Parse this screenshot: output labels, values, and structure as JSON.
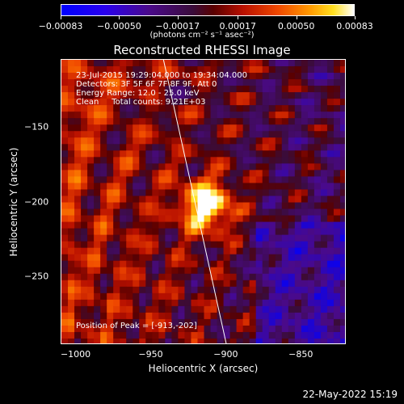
{
  "chart_data": {
    "type": "heatmap",
    "title": "Reconstructed RHESSI Image",
    "xlabel": "Heliocentric X (arcsec)",
    "ylabel": "Heliocentric Y (arcsec)",
    "xlim": [
      -1010,
      -820
    ],
    "ylim": [
      -295,
      -105
    ],
    "x_ticks": [
      "−1000",
      "−950",
      "−900",
      "−850"
    ],
    "x_tick_values": [
      -1000,
      -950,
      -900,
      -850
    ],
    "y_ticks": [
      "−150",
      "−200",
      "−250"
    ],
    "y_tick_values": [
      -150,
      -200,
      -250
    ],
    "colorbar": {
      "ticks": [
        "−0.00083",
        "−0.00050",
        "−0.00017",
        "0.00017",
        "0.00050",
        "0.00083"
      ],
      "tick_values": [
        -0.00083,
        -0.0005,
        -0.00017,
        0.00017,
        0.0005,
        0.00083
      ],
      "units": "(photons cm⁻² s⁻¹ asec⁻²)",
      "colors": [
        "#0000ff",
        "#3a0c3a",
        "#b81000",
        "#ff9a00",
        "#ffffff"
      ]
    },
    "peak": [
      -913,
      -202
    ],
    "limb_line": [
      [
        -942,
        -105
      ],
      [
        -900,
        -295
      ]
    ],
    "grid": false
  },
  "annotations": {
    "time_range": "23-Jul-2015 19:29:04.000 to 19:34:04.000",
    "detectors": "Detectors: 3F 5F 6F 7F 8F 9F, Att 0",
    "energy_range": "Energy Range: 12.0 - 25.0 keV",
    "clean": "Clean     Total counts: 9.21E+03",
    "peak_position": "Position of Peak = [-913,-202]"
  },
  "datestamp": "22-May-2022 15:19"
}
